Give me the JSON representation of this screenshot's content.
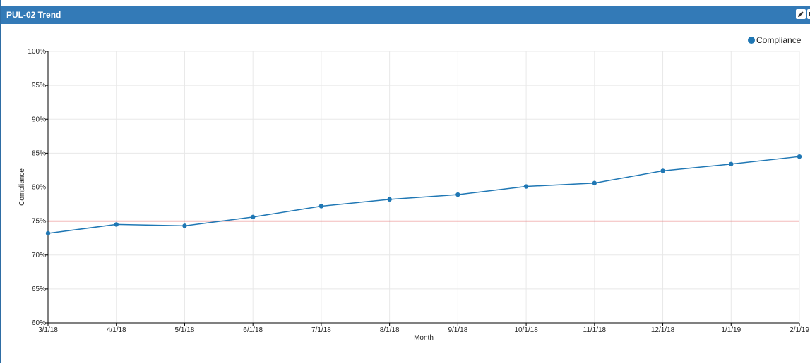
{
  "panel": {
    "title": "PUL-02 Trend"
  },
  "icons": {
    "edit": "pencil-icon",
    "export": "download-icon"
  },
  "colors": {
    "header": "#337ab7",
    "series": "#1f77b4",
    "target_line": "#e8787a",
    "grid": "#e8e8e8"
  },
  "chart_data": {
    "type": "line",
    "title": "",
    "xlabel": "Month",
    "ylabel": "Compliance",
    "categories": [
      "3/1/18",
      "4/1/18",
      "5/1/18",
      "6/1/18",
      "7/1/18",
      "8/1/18",
      "9/1/18",
      "10/1/18",
      "11/1/18",
      "12/1/18",
      "1/1/19",
      "2/1/19"
    ],
    "series": [
      {
        "name": "Compliance",
        "values": [
          73.2,
          74.5,
          74.3,
          75.6,
          77.2,
          78.2,
          78.9,
          80.1,
          80.6,
          82.4,
          83.4,
          84.5
        ]
      }
    ],
    "reference_line": {
      "value": 75
    },
    "ylim": [
      60,
      100
    ],
    "yticks": [
      "60%",
      "65%",
      "70%",
      "75%",
      "80%",
      "85%",
      "90%",
      "95%",
      "100%"
    ],
    "grid": true,
    "legend": "top-right"
  }
}
